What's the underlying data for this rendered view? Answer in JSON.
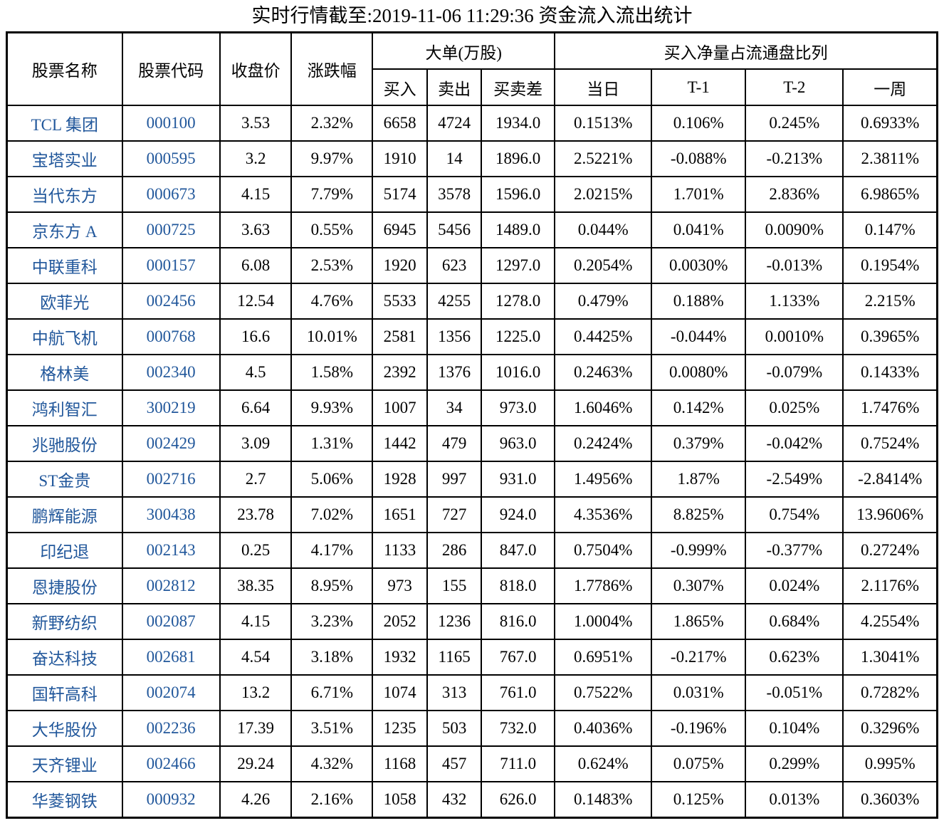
{
  "title": "实时行情截至:2019-11-06 11:29:36 资金流入流出统计",
  "colors": {
    "link_blue": "#21579b",
    "border": "#000000",
    "text": "#000000"
  },
  "table": {
    "columns": {
      "name": "股票名称",
      "code": "股票代码",
      "close": "收盘价",
      "change": "涨跌幅",
      "big_order_group": "大单(万股)",
      "buy": "买入",
      "sell": "卖出",
      "diff": "买卖差",
      "ratio_group": "买入净量占流通盘比列",
      "day": "当日",
      "t1": "T-1",
      "t2": "T-2",
      "week": "一周"
    },
    "rows": [
      [
        "TCL 集团",
        "000100",
        "3.53",
        "2.32%",
        "6658",
        "4724",
        "1934.0",
        "0.1513%",
        "0.106%",
        "0.245%",
        "0.6933%"
      ],
      [
        "宝塔实业",
        "000595",
        "3.2",
        "9.97%",
        "1910",
        "14",
        "1896.0",
        "2.5221%",
        "-0.088%",
        "-0.213%",
        "2.3811%"
      ],
      [
        "当代东方",
        "000673",
        "4.15",
        "7.79%",
        "5174",
        "3578",
        "1596.0",
        "2.0215%",
        "1.701%",
        "2.836%",
        "6.9865%"
      ],
      [
        "京东方 A",
        "000725",
        "3.63",
        "0.55%",
        "6945",
        "5456",
        "1489.0",
        "0.044%",
        "0.041%",
        "0.0090%",
        "0.147%"
      ],
      [
        "中联重科",
        "000157",
        "6.08",
        "2.53%",
        "1920",
        "623",
        "1297.0",
        "0.2054%",
        "0.0030%",
        "-0.013%",
        "0.1954%"
      ],
      [
        "欧菲光",
        "002456",
        "12.54",
        "4.76%",
        "5533",
        "4255",
        "1278.0",
        "0.479%",
        "0.188%",
        "1.133%",
        "2.215%"
      ],
      [
        "中航飞机",
        "000768",
        "16.6",
        "10.01%",
        "2581",
        "1356",
        "1225.0",
        "0.4425%",
        "-0.044%",
        "0.0010%",
        "0.3965%"
      ],
      [
        "格林美",
        "002340",
        "4.5",
        "1.58%",
        "2392",
        "1376",
        "1016.0",
        "0.2463%",
        "0.0080%",
        "-0.079%",
        "0.1433%"
      ],
      [
        "鸿利智汇",
        "300219",
        "6.64",
        "9.93%",
        "1007",
        "34",
        "973.0",
        "1.6046%",
        "0.142%",
        "0.025%",
        "1.7476%"
      ],
      [
        "兆驰股份",
        "002429",
        "3.09",
        "1.31%",
        "1442",
        "479",
        "963.0",
        "0.2424%",
        "0.379%",
        "-0.042%",
        "0.7524%"
      ],
      [
        "ST金贵",
        "002716",
        "2.7",
        "5.06%",
        "1928",
        "997",
        "931.0",
        "1.4956%",
        "1.87%",
        "-2.549%",
        "-2.8414%"
      ],
      [
        "鹏辉能源",
        "300438",
        "23.78",
        "7.02%",
        "1651",
        "727",
        "924.0",
        "4.3536%",
        "8.825%",
        "0.754%",
        "13.9606%"
      ],
      [
        "印纪退",
        "002143",
        "0.25",
        "4.17%",
        "1133",
        "286",
        "847.0",
        "0.7504%",
        "-0.999%",
        "-0.377%",
        "0.2724%"
      ],
      [
        "恩捷股份",
        "002812",
        "38.35",
        "8.95%",
        "973",
        "155",
        "818.0",
        "1.7786%",
        "0.307%",
        "0.024%",
        "2.1176%"
      ],
      [
        "新野纺织",
        "002087",
        "4.15",
        "3.23%",
        "2052",
        "1236",
        "816.0",
        "1.0004%",
        "1.865%",
        "0.684%",
        "4.2554%"
      ],
      [
        "奋达科技",
        "002681",
        "4.54",
        "3.18%",
        "1932",
        "1165",
        "767.0",
        "0.6951%",
        "-0.217%",
        "0.623%",
        "1.3041%"
      ],
      [
        "国轩高科",
        "002074",
        "13.2",
        "6.71%",
        "1074",
        "313",
        "761.0",
        "0.7522%",
        "0.031%",
        "-0.051%",
        "0.7282%"
      ],
      [
        "大华股份",
        "002236",
        "17.39",
        "3.51%",
        "1235",
        "503",
        "732.0",
        "0.4036%",
        "-0.196%",
        "0.104%",
        "0.3296%"
      ],
      [
        "天齐锂业",
        "002466",
        "29.24",
        "4.32%",
        "1168",
        "457",
        "711.0",
        "0.624%",
        "0.075%",
        "0.299%",
        "0.995%"
      ],
      [
        "华菱钢铁",
        "000932",
        "4.26",
        "2.16%",
        "1058",
        "432",
        "626.0",
        "0.1483%",
        "0.125%",
        "0.013%",
        "0.3603%"
      ]
    ]
  }
}
